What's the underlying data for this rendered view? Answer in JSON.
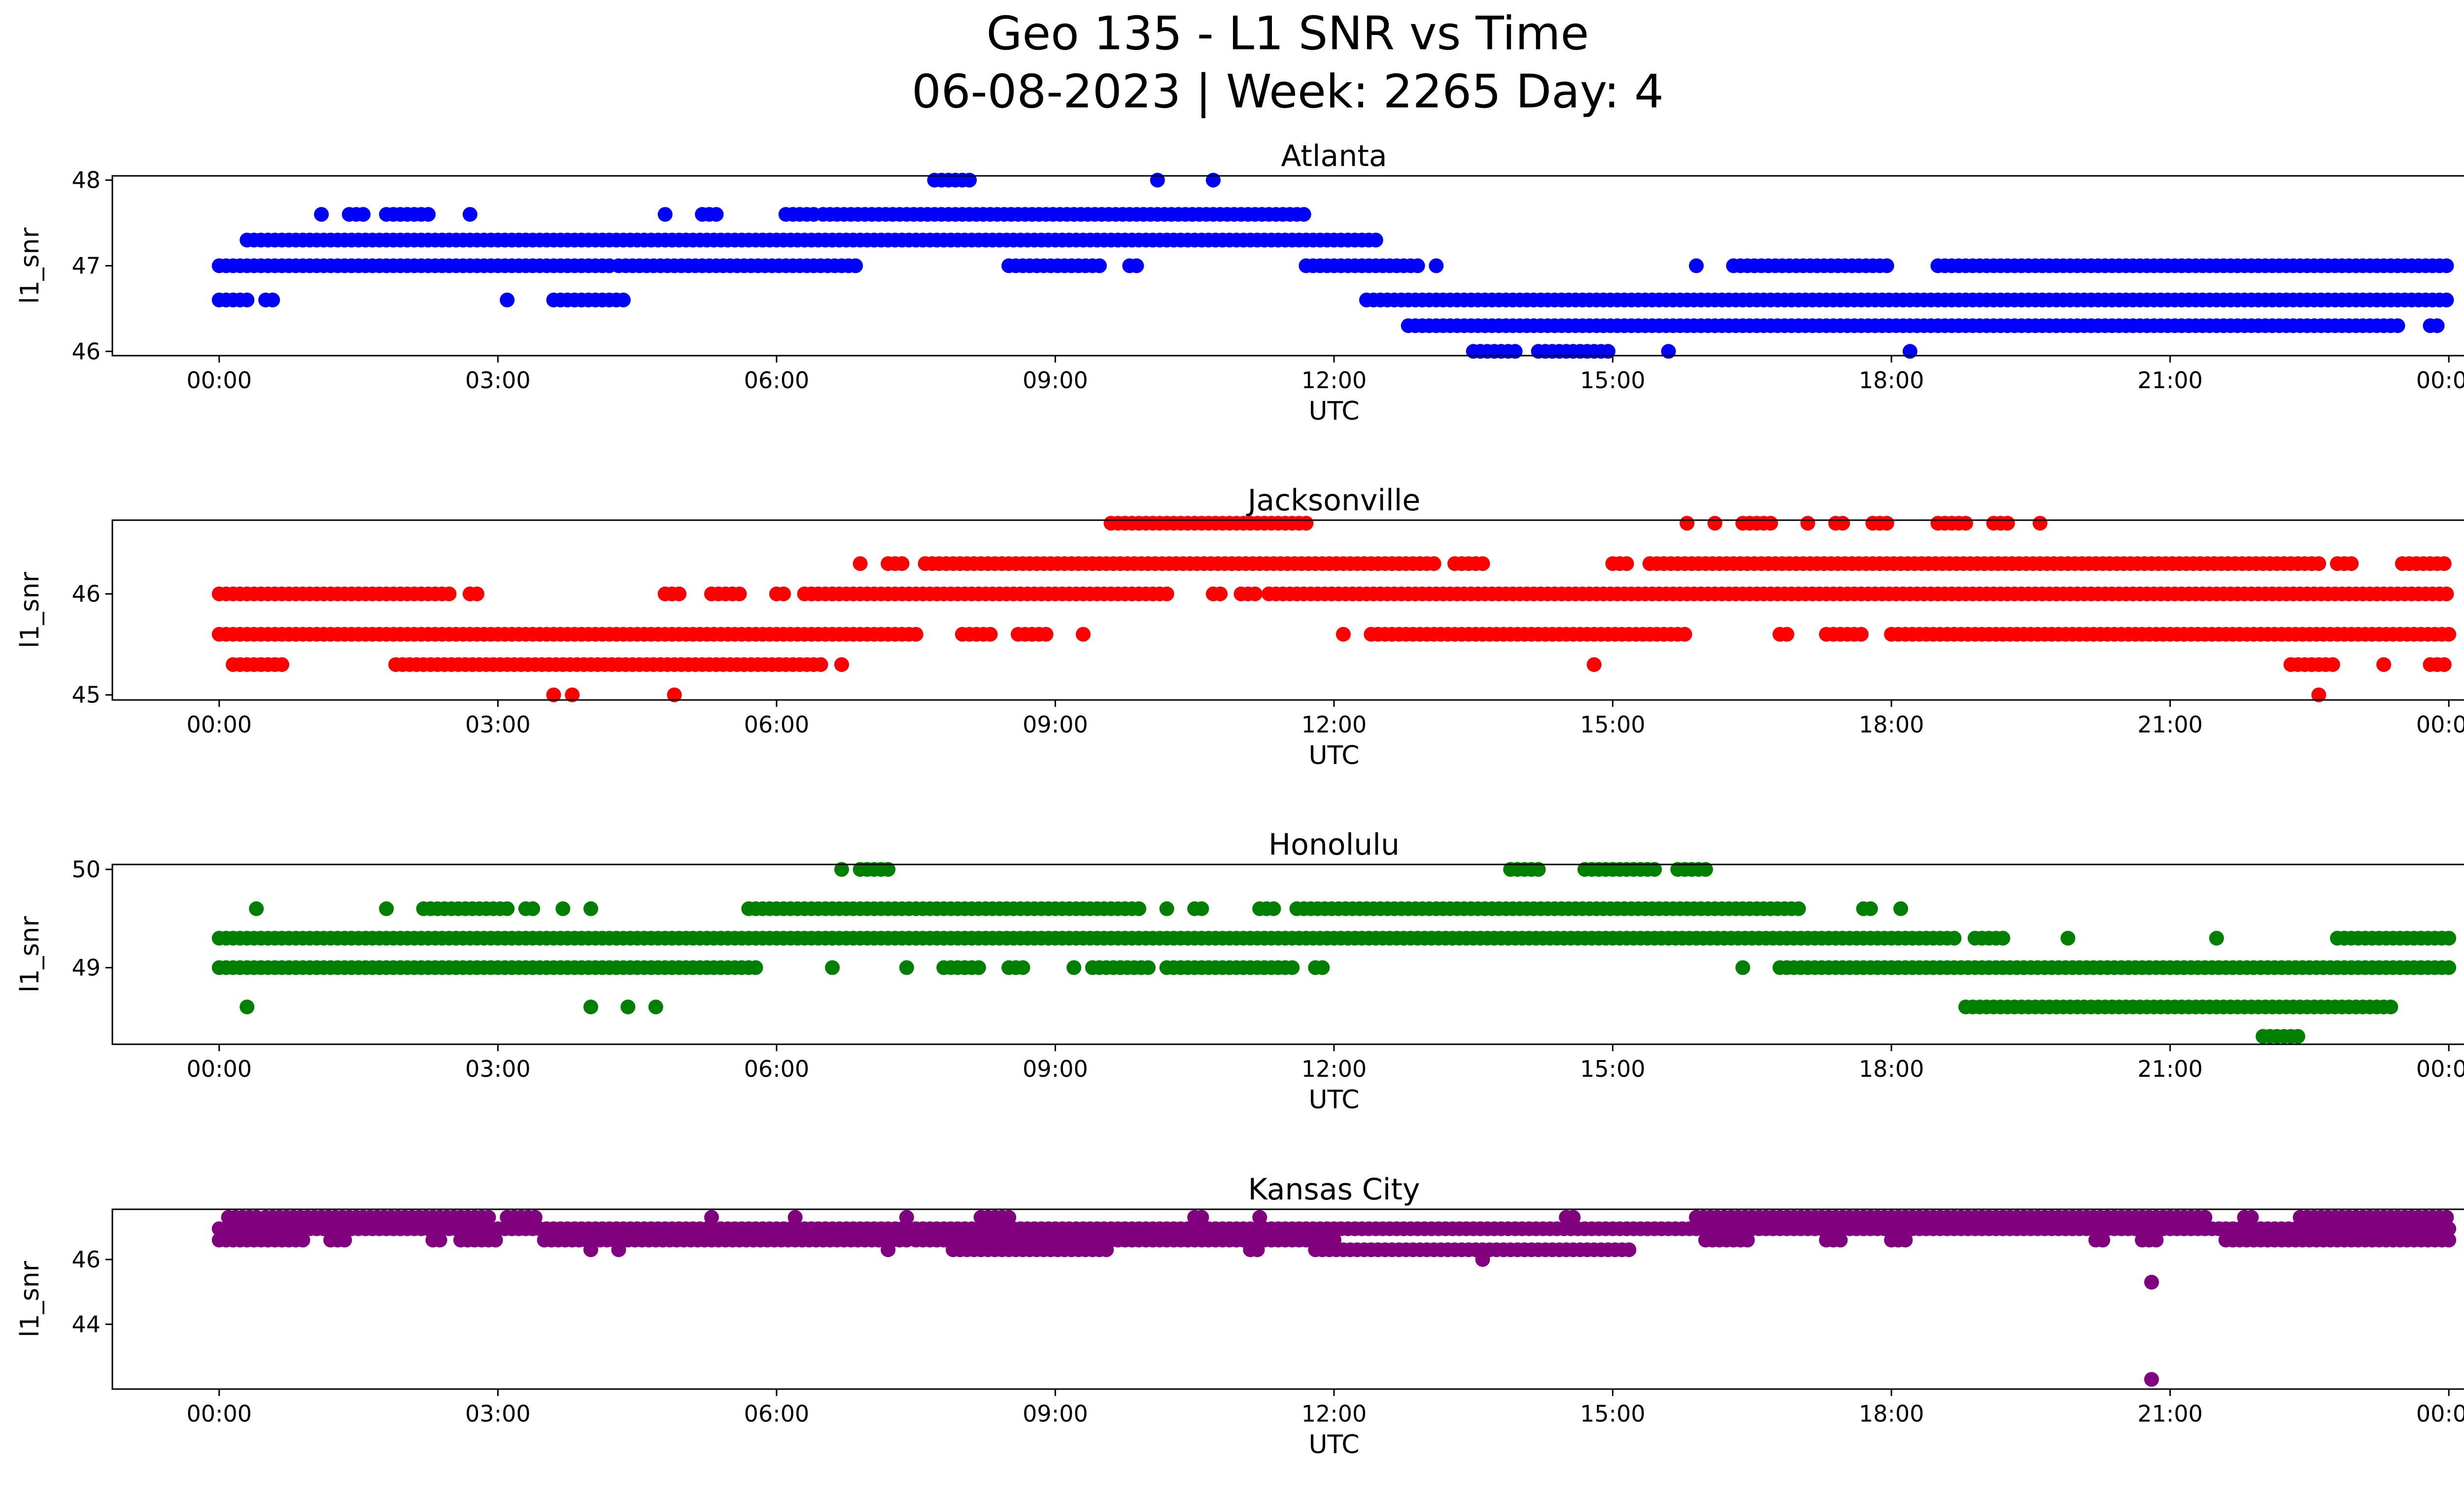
{
  "figure": {
    "title_line1": "Geo 135 - L1 SNR vs Time",
    "title_line2": "06-08-2023 | Week: 2265 Day: 4"
  },
  "chart_data": [
    {
      "type": "scatter",
      "title": "Atlanta",
      "xlabel": "UTC",
      "ylabel": "l1_snr",
      "color": "#0000ff",
      "xlim_hours": [
        -1.15,
        25.15
      ],
      "ylim": [
        45.95,
        48.05
      ],
      "x_tick_labels": [
        "00:00",
        "03:00",
        "06:00",
        "09:00",
        "12:00",
        "15:00",
        "18:00",
        "21:00",
        "00:00"
      ],
      "y_ticks": [
        46,
        47,
        48
      ],
      "series": [
        {
          "y": 47.3,
          "segments": [
            [
              0.3,
              12.45
            ]
          ]
        },
        {
          "y": 47.0,
          "segments": [
            [
              0.0,
              4.2
            ],
            [
              4.3,
              6.9
            ],
            [
              8.5,
              9.5
            ],
            [
              9.8,
              9.9
            ],
            [
              11.7,
              12.9
            ],
            [
              13.1,
              13.1
            ],
            [
              15.9,
              15.9
            ],
            [
              16.3,
              18.0
            ],
            [
              18.5,
              24.0
            ]
          ]
        },
        {
          "y": 46.6,
          "segments": [
            [
              0.0,
              0.35
            ],
            [
              0.5,
              0.6
            ],
            [
              3.1,
              3.1
            ],
            [
              3.6,
              4.4
            ],
            [
              12.35,
              24.0
            ]
          ]
        },
        {
          "y": 46.3,
          "segments": [
            [
              12.8,
              23.5
            ],
            [
              23.8,
              23.9
            ]
          ]
        },
        {
          "y": 46.0,
          "segments": [
            [
              13.5,
              14.0
            ],
            [
              14.2,
              15.0
            ],
            [
              15.6,
              15.6
            ],
            [
              18.2,
              18.2
            ]
          ]
        },
        {
          "y": 47.6,
          "segments": [
            [
              1.1,
              1.1
            ],
            [
              1.4,
              1.6
            ],
            [
              1.8,
              2.3
            ],
            [
              2.7,
              2.7
            ],
            [
              4.8,
              4.8
            ],
            [
              5.2,
              5.4
            ],
            [
              6.1,
              6.4
            ],
            [
              6.5,
              11.7
            ]
          ]
        },
        {
          "y": 48.0,
          "segments": [
            [
              7.7,
              8.1
            ],
            [
              10.1,
              10.1
            ],
            [
              10.7,
              10.7
            ]
          ]
        }
      ]
    },
    {
      "type": "scatter",
      "title": "Jacksonville",
      "xlabel": "UTC",
      "ylabel": "l1_snr",
      "color": "#ff0000",
      "xlim_hours": [
        -1.15,
        25.15
      ],
      "ylim": [
        44.95,
        46.73
      ],
      "x_tick_labels": [
        "00:00",
        "03:00",
        "06:00",
        "09:00",
        "12:00",
        "15:00",
        "18:00",
        "21:00",
        "00:00"
      ],
      "y_ticks": [
        45,
        46
      ],
      "series": [
        {
          "y": 46.0,
          "segments": [
            [
              0.0,
              2.5
            ],
            [
              2.7,
              2.8
            ],
            [
              4.8,
              5.0
            ],
            [
              5.3,
              5.6
            ],
            [
              6.0,
              6.1
            ],
            [
              6.3,
              10.2
            ],
            [
              10.7,
              10.8
            ],
            [
              11.0,
              11.2
            ],
            [
              11.3,
              24.0
            ]
          ]
        },
        {
          "y": 45.6,
          "segments": [
            [
              0.0,
              7.5
            ],
            [
              8.0,
              8.3
            ],
            [
              8.6,
              8.9
            ],
            [
              9.3,
              9.3
            ],
            [
              12.1,
              12.1
            ],
            [
              12.4,
              15.8
            ],
            [
              16.8,
              16.9
            ],
            [
              17.3,
              17.7
            ],
            [
              18.0,
              24.0
            ]
          ]
        },
        {
          "y": 45.3,
          "segments": [
            [
              0.15,
              0.7
            ],
            [
              1.9,
              6.5
            ],
            [
              6.7,
              6.7
            ],
            [
              14.8,
              14.8
            ],
            [
              22.3,
              22.8
            ],
            [
              23.3,
              23.3
            ],
            [
              23.8,
              24.0
            ]
          ]
        },
        {
          "y": 46.3,
          "segments": [
            [
              6.9,
              6.9
            ],
            [
              7.2,
              7.4
            ],
            [
              7.6,
              13.1
            ],
            [
              13.3,
              13.6
            ],
            [
              15.0,
              15.2
            ],
            [
              15.4,
              22.6
            ],
            [
              22.8,
              23.0
            ],
            [
              23.5,
              24.0
            ]
          ]
        },
        {
          "y": 46.7,
          "segments": [
            [
              9.6,
              11.7
            ],
            [
              15.8,
              15.8
            ],
            [
              16.1,
              16.1
            ],
            [
              16.4,
              16.7
            ],
            [
              17.1,
              17.1
            ],
            [
              17.4,
              17.5
            ],
            [
              17.8,
              18.0
            ],
            [
              18.5,
              18.8
            ],
            [
              19.1,
              19.3
            ],
            [
              19.6,
              19.6
            ]
          ]
        },
        {
          "y": 45.0,
          "segments": [
            [
              3.6,
              3.6
            ],
            [
              3.8,
              3.8
            ],
            [
              4.9,
              4.9
            ],
            [
              22.6,
              22.6
            ]
          ]
        }
      ]
    },
    {
      "type": "scatter",
      "title": "Honolulu",
      "xlabel": "UTC",
      "ylabel": "l1_snr",
      "color": "#008000",
      "xlim_hours": [
        -1.15,
        25.15
      ],
      "ylim": [
        48.22,
        50.05
      ],
      "x_tick_labels": [
        "00:00",
        "03:00",
        "06:00",
        "09:00",
        "12:00",
        "15:00",
        "18:00",
        "21:00",
        "00:00"
      ],
      "y_ticks": [
        49,
        50
      ],
      "series": [
        {
          "y": 49.3,
          "segments": [
            [
              0.0,
              18.7
            ],
            [
              18.9,
              19.2
            ],
            [
              19.9,
              19.9
            ],
            [
              21.5,
              21.5
            ],
            [
              22.8,
              24.0
            ]
          ]
        },
        {
          "y": 49.0,
          "segments": [
            [
              0.0,
              5.8
            ],
            [
              6.6,
              6.6
            ],
            [
              7.4,
              7.4
            ],
            [
              7.8,
              8.2
            ],
            [
              8.5,
              8.7
            ],
            [
              9.2,
              9.2
            ],
            [
              9.4,
              10.0
            ],
            [
              10.2,
              11.6
            ],
            [
              11.8,
              11.9
            ],
            [
              16.4,
              16.4
            ],
            [
              16.8,
              24.0
            ]
          ]
        },
        {
          "y": 48.6,
          "segments": [
            [
              0.3,
              0.3
            ],
            [
              4.0,
              4.0
            ],
            [
              4.4,
              4.4
            ],
            [
              4.7,
              4.7
            ],
            [
              18.8,
              23.4
            ]
          ]
        },
        {
          "y": 49.6,
          "segments": [
            [
              0.4,
              0.4
            ],
            [
              1.8,
              1.8
            ],
            [
              2.2,
              3.1
            ],
            [
              3.3,
              3.4
            ],
            [
              3.7,
              3.7
            ],
            [
              4.0,
              4.0
            ],
            [
              5.7,
              9.9
            ],
            [
              10.2,
              10.2
            ],
            [
              10.5,
              10.6
            ],
            [
              11.2,
              11.4
            ],
            [
              11.6,
              17.0
            ],
            [
              17.7,
              17.8
            ],
            [
              18.1,
              18.1
            ]
          ]
        },
        {
          "y": 50.0,
          "segments": [
            [
              6.7,
              6.7
            ],
            [
              6.9,
              7.2
            ],
            [
              13.9,
              14.2
            ],
            [
              14.7,
              15.5
            ],
            [
              15.7,
              16.0
            ]
          ]
        },
        {
          "y": 48.3,
          "segments": [
            [
              22.0,
              22.4
            ]
          ]
        }
      ]
    },
    {
      "type": "scatter",
      "title": "Kansas City",
      "xlabel": "UTC",
      "ylabel": "l1_snr",
      "color": "#800080",
      "xlim_hours": [
        -1.15,
        25.15
      ],
      "ylim": [
        42.0,
        47.55
      ],
      "x_tick_labels": [
        "00:00",
        "03:00",
        "06:00",
        "09:00",
        "12:00",
        "15:00",
        "18:00",
        "21:00",
        "00:00"
      ],
      "y_ticks": [
        44,
        46
      ],
      "series": [
        {
          "y": 46.95,
          "segments": [
            [
              0.0,
              24.0
            ]
          ]
        },
        {
          "y": 46.6,
          "segments": [
            [
              0.0,
              0.9
            ],
            [
              1.2,
              1.4
            ],
            [
              2.3,
              2.4
            ],
            [
              2.6,
              3.0
            ],
            [
              3.5,
              7.4
            ],
            [
              7.5,
              12.0
            ],
            [
              16.0,
              16.5
            ],
            [
              17.3,
              17.5
            ],
            [
              18.0,
              18.2
            ],
            [
              20.2,
              20.3
            ],
            [
              20.7,
              20.9
            ],
            [
              21.6,
              24.0
            ]
          ]
        },
        {
          "y": 46.3,
          "segments": [
            [
              4.0,
              4.0
            ],
            [
              4.3,
              4.3
            ],
            [
              7.2,
              7.2
            ],
            [
              7.9,
              9.6
            ],
            [
              11.1,
              11.2
            ],
            [
              11.8,
              15.2
            ]
          ]
        },
        {
          "y": 47.3,
          "segments": [
            [
              0.1,
              0.4
            ],
            [
              0.5,
              2.9
            ],
            [
              3.1,
              3.4
            ],
            [
              5.3,
              5.3
            ],
            [
              6.2,
              6.2
            ],
            [
              7.4,
              7.4
            ],
            [
              8.2,
              8.5
            ],
            [
              10.5,
              10.6
            ],
            [
              11.2,
              11.2
            ],
            [
              14.5,
              14.6
            ],
            [
              15.9,
              21.4
            ],
            [
              21.8,
              21.9
            ],
            [
              22.4,
              24.0
            ]
          ]
        },
        {
          "y": 46.0,
          "segments": [
            [
              13.6,
              13.6
            ]
          ]
        },
        {
          "y": 45.3,
          "segments": [
            [
              20.8,
              20.8
            ]
          ]
        },
        {
          "y": 42.3,
          "segments": [
            [
              20.8,
              20.8
            ]
          ]
        }
      ]
    }
  ]
}
